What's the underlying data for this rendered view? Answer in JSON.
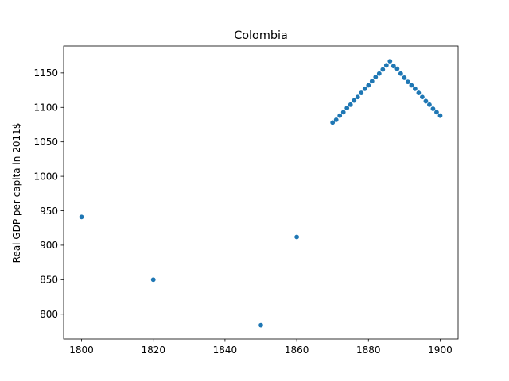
{
  "chart_data": {
    "type": "scatter",
    "title": "Colombia",
    "xlabel": "",
    "ylabel": "Real GDP per capita in 2011$",
    "xlim": [
      1795,
      1905
    ],
    "ylim": [
      764,
      1189
    ],
    "x_ticks": [
      1800,
      1820,
      1840,
      1860,
      1880,
      1900
    ],
    "y_ticks": [
      800,
      850,
      900,
      950,
      1000,
      1050,
      1100,
      1150
    ],
    "grid": false,
    "legend": "none",
    "series": [
      {
        "color": "#1f77b4",
        "points": [
          {
            "x": 1800,
            "y": 941
          },
          {
            "x": 1820,
            "y": 850
          },
          {
            "x": 1850,
            "y": 784
          },
          {
            "x": 1860,
            "y": 912
          },
          {
            "x": 1870,
            "y": 1078
          },
          {
            "x": 1871,
            "y": 1082
          },
          {
            "x": 1872,
            "y": 1088
          },
          {
            "x": 1873,
            "y": 1093
          },
          {
            "x": 1874,
            "y": 1099
          },
          {
            "x": 1875,
            "y": 1104
          },
          {
            "x": 1876,
            "y": 1110
          },
          {
            "x": 1877,
            "y": 1115
          },
          {
            "x": 1878,
            "y": 1121
          },
          {
            "x": 1879,
            "y": 1127
          },
          {
            "x": 1880,
            "y": 1132
          },
          {
            "x": 1881,
            "y": 1138
          },
          {
            "x": 1882,
            "y": 1144
          },
          {
            "x": 1883,
            "y": 1149
          },
          {
            "x": 1884,
            "y": 1155
          },
          {
            "x": 1885,
            "y": 1161
          },
          {
            "x": 1886,
            "y": 1167
          },
          {
            "x": 1887,
            "y": 1160
          },
          {
            "x": 1888,
            "y": 1156
          },
          {
            "x": 1889,
            "y": 1149
          },
          {
            "x": 1890,
            "y": 1143
          },
          {
            "x": 1891,
            "y": 1137
          },
          {
            "x": 1892,
            "y": 1132
          },
          {
            "x": 1893,
            "y": 1127
          },
          {
            "x": 1894,
            "y": 1121
          },
          {
            "x": 1895,
            "y": 1115
          },
          {
            "x": 1896,
            "y": 1109
          },
          {
            "x": 1897,
            "y": 1104
          },
          {
            "x": 1898,
            "y": 1098
          },
          {
            "x": 1899,
            "y": 1093
          },
          {
            "x": 1900,
            "y": 1088
          }
        ]
      }
    ]
  }
}
